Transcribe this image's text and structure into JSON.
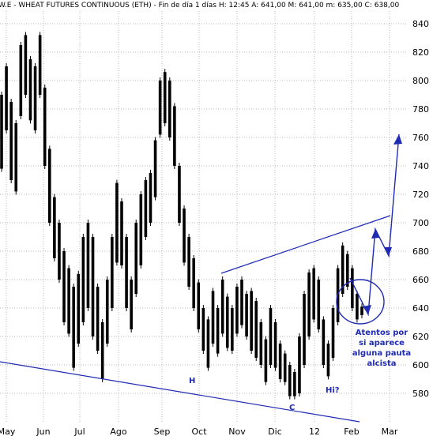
{
  "chart_data": {
    "type": "bar",
    "title": "W.E - WHEAT FUTURES CONTINUOUS (ETH) - Fin de día 1 días H: 12:45 A: 641,00 M: 641,00 m: 635,00 C: 638,00",
    "ylim": [
      570,
      845
    ],
    "y_ticks": [
      "580",
      "600",
      "620",
      "640",
      "660",
      "680",
      "700",
      "720",
      "740",
      "760",
      "780",
      "800",
      "820",
      "840"
    ],
    "x_ticks": [
      "May",
      "Jun",
      "Jul",
      "Ago",
      "Sep",
      "Oct",
      "Nov",
      "Dic",
      "12",
      "Feb",
      "Mar"
    ],
    "grid": true,
    "series": [
      {
        "style": "ohlc",
        "values": [
          {
            "x": "May",
            "h": 790,
            "l": 738
          },
          {
            "x": "May",
            "h": 810,
            "l": 765
          },
          {
            "x": "May",
            "h": 785,
            "l": 730
          },
          {
            "x": "May",
            "h": 770,
            "l": 722
          },
          {
            "x": "May",
            "h": 825,
            "l": 775
          },
          {
            "x": "May",
            "h": 832,
            "l": 790
          },
          {
            "x": "May",
            "h": 815,
            "l": 772
          },
          {
            "x": "May",
            "h": 810,
            "l": 765
          },
          {
            "x": "May",
            "h": 832,
            "l": 790
          },
          {
            "x": "Jun",
            "h": 795,
            "l": 740
          },
          {
            "x": "Jun",
            "h": 752,
            "l": 700
          },
          {
            "x": "Jun",
            "h": 718,
            "l": 675
          },
          {
            "x": "Jun",
            "h": 700,
            "l": 660
          },
          {
            "x": "Jun",
            "h": 680,
            "l": 630
          },
          {
            "x": "Jun",
            "h": 668,
            "l": 622
          },
          {
            "x": "Jun",
            "h": 655,
            "l": 598
          },
          {
            "x": "Jun",
            "h": 664,
            "l": 615
          },
          {
            "x": "Jun",
            "h": 690,
            "l": 630
          },
          {
            "x": "Jul",
            "h": 700,
            "l": 640
          },
          {
            "x": "Jul",
            "h": 690,
            "l": 620
          },
          {
            "x": "Jul",
            "h": 655,
            "l": 610
          },
          {
            "x": "Jul",
            "h": 630,
            "l": 590
          },
          {
            "x": "Jul",
            "h": 660,
            "l": 615
          },
          {
            "x": "Jul",
            "h": 690,
            "l": 640
          },
          {
            "x": "Jul",
            "h": 728,
            "l": 672
          },
          {
            "x": "Jul",
            "h": 715,
            "l": 670
          },
          {
            "x": "Jul",
            "h": 690,
            "l": 640
          },
          {
            "x": "Ago",
            "h": 660,
            "l": 625
          },
          {
            "x": "Ago",
            "h": 700,
            "l": 650
          },
          {
            "x": "Ago",
            "h": 720,
            "l": 670
          },
          {
            "x": "Ago",
            "h": 730,
            "l": 690
          },
          {
            "x": "Ago",
            "h": 735,
            "l": 700
          },
          {
            "x": "Ago",
            "h": 758,
            "l": 718
          },
          {
            "x": "Ago",
            "h": 800,
            "l": 762
          },
          {
            "x": "Ago",
            "h": 806,
            "l": 770
          },
          {
            "x": "Ago",
            "h": 800,
            "l": 760
          },
          {
            "x": "Sep",
            "h": 782,
            "l": 740
          },
          {
            "x": "Sep",
            "h": 740,
            "l": 700
          },
          {
            "x": "Sep",
            "h": 710,
            "l": 672
          },
          {
            "x": "Sep",
            "h": 690,
            "l": 655
          },
          {
            "x": "Sep",
            "h": 675,
            "l": 640
          },
          {
            "x": "Sep",
            "h": 658,
            "l": 625
          },
          {
            "x": "Sep",
            "h": 640,
            "l": 610
          },
          {
            "x": "Sep",
            "h": 632,
            "l": 598
          },
          {
            "x": "Oct",
            "h": 652,
            "l": 615
          },
          {
            "x": "Oct",
            "h": 640,
            "l": 608
          },
          {
            "x": "Oct",
            "h": 660,
            "l": 622
          },
          {
            "x": "Oct",
            "h": 648,
            "l": 612
          },
          {
            "x": "Oct",
            "h": 640,
            "l": 610
          },
          {
            "x": "Oct",
            "h": 655,
            "l": 622
          },
          {
            "x": "Oct",
            "h": 660,
            "l": 628
          },
          {
            "x": "Oct",
            "h": 650,
            "l": 620
          },
          {
            "x": "Nov",
            "h": 652,
            "l": 610
          },
          {
            "x": "Nov",
            "h": 645,
            "l": 605
          },
          {
            "x": "Nov",
            "h": 630,
            "l": 600
          },
          {
            "x": "Nov",
            "h": 618,
            "l": 588
          },
          {
            "x": "Nov",
            "h": 640,
            "l": 600
          },
          {
            "x": "Nov",
            "h": 630,
            "l": 598
          },
          {
            "x": "Nov",
            "h": 615,
            "l": 590
          },
          {
            "x": "Dic",
            "h": 608,
            "l": 588
          },
          {
            "x": "Dic",
            "h": 600,
            "l": 578
          },
          {
            "x": "Dic",
            "h": 595,
            "l": 578
          },
          {
            "x": "Dic",
            "h": 620,
            "l": 580
          },
          {
            "x": "Dic",
            "h": 650,
            "l": 600
          },
          {
            "x": "12",
            "h": 665,
            "l": 620
          },
          {
            "x": "12",
            "h": 668,
            "l": 632
          },
          {
            "x": "12",
            "h": 660,
            "l": 625
          },
          {
            "x": "12",
            "h": 632,
            "l": 600
          },
          {
            "x": "12",
            "h": 615,
            "l": 592
          },
          {
            "x": "Feb",
            "h": 640,
            "l": 605
          },
          {
            "x": "Feb",
            "h": 668,
            "l": 630
          },
          {
            "x": "Feb",
            "h": 684,
            "l": 650
          },
          {
            "x": "Feb",
            "h": 678,
            "l": 655
          },
          {
            "x": "Feb",
            "h": 668,
            "l": 640
          },
          {
            "x": "Feb",
            "h": 650,
            "l": 632
          },
          {
            "x": "Feb",
            "h": 641,
            "l": 635
          }
        ]
      }
    ],
    "annotations": [
      "H",
      "C",
      "Hi?",
      "Atentos por",
      "si aparece",
      "alguna pauta",
      "alcista"
    ],
    "colors": {
      "bars": "#000000",
      "annotations": "#1f2bb3",
      "grid": "#b9b9b9"
    }
  }
}
